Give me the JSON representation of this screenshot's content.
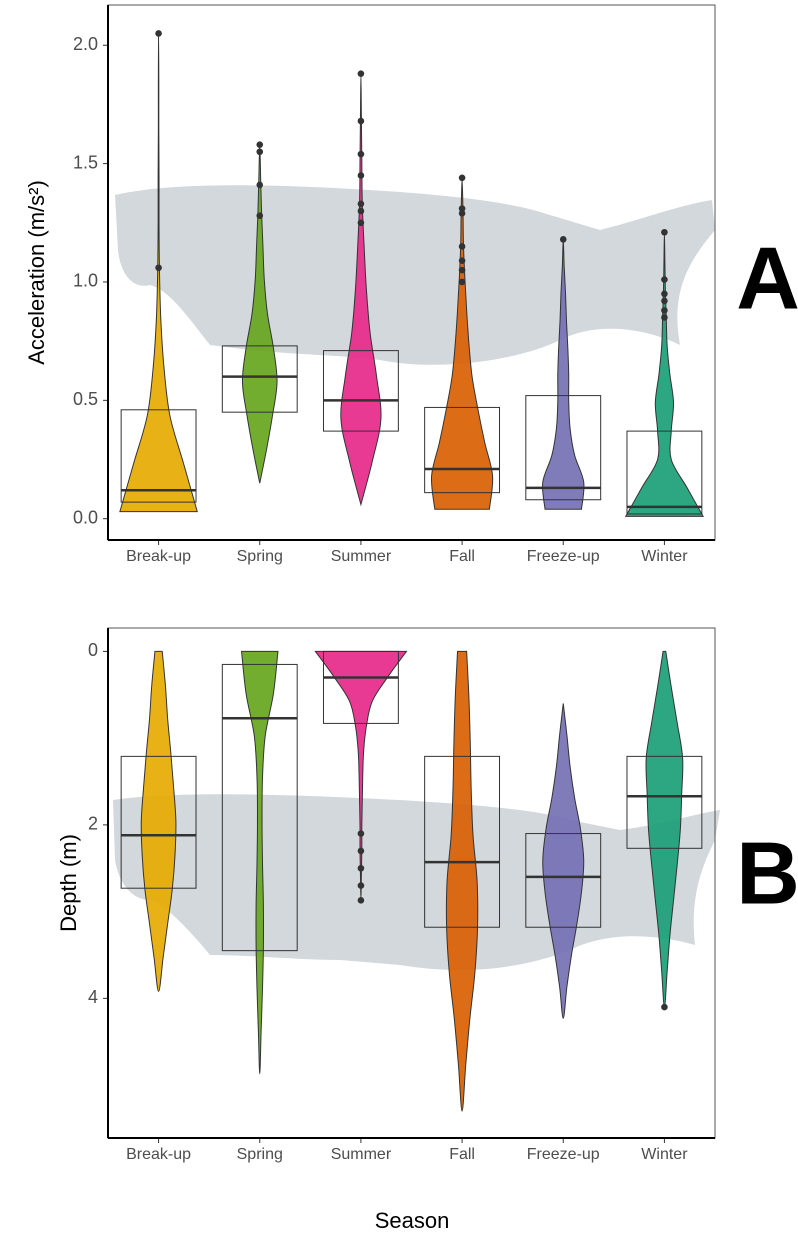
{
  "xlabel": "Season",
  "chart_data": [
    {
      "type": "violin",
      "panel_label": "A",
      "ylabel": "Acceleration (m/s²)",
      "categories": [
        "Break-up",
        "Spring",
        "Summer",
        "Fall",
        "Freeze-up",
        "Winter"
      ],
      "colors": [
        "#e6ab02",
        "#66a61e",
        "#e7298a",
        "#d95f02",
        "#7570b3",
        "#1b9e77"
      ],
      "ylim": [
        -0.09,
        2.17
      ],
      "yticks": [
        {
          "value": 0,
          "label": "0.0"
        },
        0.5,
        {
          "value": 1,
          "label": "1.0"
        },
        1.5,
        {
          "value": 2,
          "label": "2.0"
        }
      ],
      "boxes": [
        {
          "q1": 0.07,
          "median": 0.12,
          "q3": 0.46
        },
        {
          "q1": 0.45,
          "median": 0.6,
          "q3": 0.73
        },
        {
          "q1": 0.37,
          "median": 0.5,
          "q3": 0.71
        },
        {
          "q1": 0.11,
          "median": 0.21,
          "q3": 0.47
        },
        {
          "q1": 0.08,
          "median": 0.13,
          "q3": 0.52
        },
        {
          "q1": 0.02,
          "median": 0.05,
          "q3": 0.37
        }
      ],
      "violins": [
        {
          "min": 0.03,
          "max": 2.05,
          "density": [
            0.85,
            0.55,
            0.25,
            0.12,
            0.05,
            0.02,
            0.01,
            0.01,
            0.005,
            0.005,
            0
          ]
        },
        {
          "min": 0.15,
          "max": 1.58,
          "density": [
            0,
            0.15,
            0.28,
            0.38,
            0.3,
            0.17,
            0.1,
            0.07,
            0.04,
            0.02,
            0
          ]
        },
        {
          "min": 0.06,
          "max": 1.88,
          "density": [
            0,
            0.25,
            0.44,
            0.34,
            0.2,
            0.12,
            0.07,
            0.03,
            0.02,
            0.01,
            0
          ]
        },
        {
          "min": 0.04,
          "max": 1.44,
          "density": [
            0.6,
            0.67,
            0.5,
            0.35,
            0.22,
            0.15,
            0.1,
            0.06,
            0.03,
            0.02,
            0
          ]
        },
        {
          "min": 0.04,
          "max": 1.18,
          "density": [
            0.4,
            0.45,
            0.25,
            0.15,
            0.12,
            0.12,
            0.1,
            0.07,
            0.05,
            0.02,
            0
          ]
        },
        {
          "min": 0.01,
          "max": 1.21,
          "density": [
            0.85,
            0.5,
            0.15,
            0.15,
            0.2,
            0.12,
            0.06,
            0.04,
            0.02,
            0.01,
            0
          ]
        }
      ],
      "points": [
        [
          1.06,
          2.05
        ],
        [
          1.28,
          1.41,
          1.55,
          1.58
        ],
        [
          1.25,
          1.3,
          1.33,
          1.45,
          1.54,
          1.68,
          1.88
        ],
        [
          1.0,
          1.05,
          1.09,
          1.15,
          1.29,
          1.31,
          1.44
        ],
        [
          1.18
        ],
        [
          0.85,
          0.88,
          0.92,
          0.95,
          1.01,
          1.21
        ]
      ]
    },
    {
      "type": "violin",
      "panel_label": "B",
      "ylabel": "Depth (m)",
      "y_reversed": true,
      "categories": [
        "Break-up",
        "Spring",
        "Summer",
        "Fall",
        "Freeze-up",
        "Winter"
      ],
      "colors": [
        "#e6ab02",
        "#66a61e",
        "#e7298a",
        "#d95f02",
        "#7570b3",
        "#1b9e77"
      ],
      "ylim": [
        -0.27,
        5.61
      ],
      "yticks": [
        0,
        2,
        4
      ],
      "boxes": [
        {
          "q1": 1.21,
          "median": 2.12,
          "q3": 2.73
        },
        {
          "q1": 0.15,
          "median": 0.77,
          "q3": 3.45
        },
        {
          "q1": 0,
          "median": 0.3,
          "q3": 0.83
        },
        {
          "q1": 1.21,
          "median": 2.43,
          "q3": 3.18
        },
        {
          "q1": 2.1,
          "median": 2.6,
          "q3": 3.18
        },
        {
          "q1": 1.21,
          "median": 1.67,
          "q3": 2.27
        }
      ],
      "violins": [
        {
          "min": 0,
          "max": 3.92,
          "density": [
            0.08,
            0.15,
            0.2,
            0.27,
            0.33,
            0.38,
            0.36,
            0.3,
            0.2,
            0.1,
            0
          ]
        },
        {
          "min": 0,
          "max": 4.87,
          "density": [
            0.4,
            0.3,
            0.12,
            0.06,
            0.05,
            0.06,
            0.08,
            0.08,
            0.06,
            0.03,
            0
          ]
        },
        {
          "min": 0,
          "max": 2.87,
          "density": [
            1.0,
            0.6,
            0.25,
            0.12,
            0.06,
            0.04,
            0.03,
            0.02,
            0.02,
            0.01,
            0
          ]
        },
        {
          "min": 0,
          "max": 5.3,
          "density": [
            0.1,
            0.15,
            0.18,
            0.2,
            0.24,
            0.33,
            0.34,
            0.28,
            0.17,
            0.08,
            0
          ]
        },
        {
          "min": 0.6,
          "max": 4.23,
          "density": [
            0,
            0.08,
            0.15,
            0.25,
            0.38,
            0.45,
            0.4,
            0.3,
            0.18,
            0.08,
            0
          ]
        },
        {
          "min": 0,
          "max": 4.1,
          "density": [
            0.03,
            0.15,
            0.28,
            0.4,
            0.38,
            0.35,
            0.28,
            0.2,
            0.12,
            0.06,
            0
          ]
        }
      ],
      "points": [
        [],
        [],
        [
          2.1,
          2.3,
          2.5,
          2.7,
          2.87
        ],
        [],
        [],
        [
          4.1
        ]
      ]
    }
  ]
}
